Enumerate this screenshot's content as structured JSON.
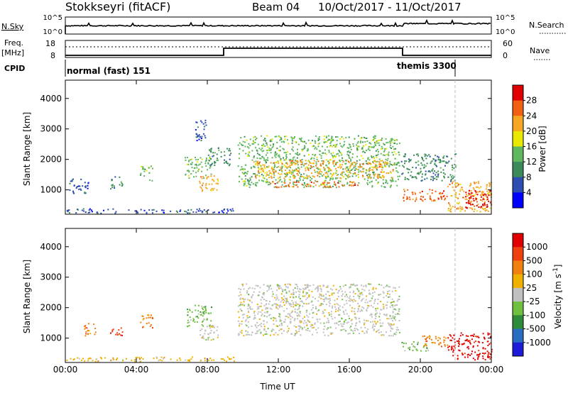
{
  "header": {
    "station": "Stokkseyri (fitACF)",
    "beam": "Beam 04",
    "date_range": "10/Oct/2017 - 11/Oct/2017"
  },
  "labels": {
    "nsky": "N.Sky",
    "nsearch": "N.Search",
    "freq_top": "Freq.",
    "freq_unit": "[MHz]",
    "nave": "Nave",
    "cpid": "CPID",
    "nsky_hi": "10^5",
    "nsky_lo": "10^0",
    "ns_hi": "10^5",
    "ns_lo": "10^0",
    "freq_hi": "18",
    "freq_lo": "8",
    "nave_hi": "60",
    "nave_lo": "0",
    "mode1": "normal (fast) 151",
    "mode2": "themis 3300",
    "ylabel": "Slant Range [km]",
    "xlabel": "Time UT"
  },
  "colors": {
    "power": [
      "#0000ff",
      "#2e4db0",
      "#3a8a5a",
      "#5fb85f",
      "#e8e800",
      "#f5a623",
      "#f06010",
      "#e00000"
    ],
    "velocity": [
      "#1c1cd8",
      "#2a6cc0",
      "#2e8b3a",
      "#70c040",
      "#c0c0c0",
      "#f0b000",
      "#f08010",
      "#f04010",
      "#e00000"
    ],
    "ground_scatter": "#c0c0c0"
  },
  "chart_data": [
    {
      "type": "heatmap",
      "title": "Power",
      "ylabel": "Slant Range [km]",
      "xlabel": "",
      "x_ticks": [
        "00:00",
        "04:00",
        "08:00",
        "12:00",
        "16:00",
        "20:00",
        "00:00"
      ],
      "y_ticks": [
        1000,
        2000,
        3000,
        4000
      ],
      "ylim": [
        200,
        4600
      ],
      "xlim_hours": [
        0,
        24
      ],
      "colorbar": {
        "label": "Power [dB]",
        "ticks": [
          4,
          8,
          12,
          16,
          20,
          24,
          28
        ]
      },
      "regions": [
        {
          "t0": 0.0,
          "t1": 9.5,
          "r0": 250,
          "r1": 400,
          "level": 1
        },
        {
          "t0": 0.2,
          "t1": 1.3,
          "r0": 900,
          "r1": 1400,
          "level": 1
        },
        {
          "t0": 2.5,
          "t1": 3.2,
          "r0": 1050,
          "r1": 1450,
          "level": 2
        },
        {
          "t0": 4.2,
          "t1": 4.9,
          "r0": 1300,
          "r1": 1800,
          "level": 3
        },
        {
          "t0": 6.7,
          "t1": 8.2,
          "r0": 1400,
          "r1": 2100,
          "level": 3
        },
        {
          "t0": 7.5,
          "t1": 8.6,
          "r0": 950,
          "r1": 1500,
          "level": 5
        },
        {
          "t0": 7.2,
          "t1": 7.9,
          "r0": 2600,
          "r1": 3300,
          "level": 1
        },
        {
          "t0": 8.0,
          "t1": 9.3,
          "r0": 1800,
          "r1": 2400,
          "level": 2
        },
        {
          "t0": 9.7,
          "t1": 18.8,
          "r0": 1100,
          "r1": 2800,
          "level": 3
        },
        {
          "t0": 10.5,
          "t1": 18.5,
          "r0": 1400,
          "r1": 2000,
          "level": 5
        },
        {
          "t0": 11.5,
          "t1": 16.5,
          "r0": 1100,
          "r1": 1300,
          "level": 6
        },
        {
          "t0": 18.9,
          "t1": 22.0,
          "r0": 1300,
          "r1": 2200,
          "level": 2
        },
        {
          "t0": 19.0,
          "t1": 21.5,
          "r0": 650,
          "r1": 1050,
          "level": 6
        },
        {
          "t0": 21.5,
          "t1": 24.0,
          "r0": 300,
          "r1": 1300,
          "level": 5
        },
        {
          "t0": 22.5,
          "t1": 24.0,
          "r0": 400,
          "r1": 1000,
          "level": 7
        }
      ]
    },
    {
      "type": "heatmap",
      "title": "Velocity",
      "ylabel": "Slant Range [km]",
      "xlabel": "Time UT",
      "x_ticks": [
        "00:00",
        "04:00",
        "08:00",
        "12:00",
        "16:00",
        "20:00",
        "00:00"
      ],
      "y_ticks": [
        1000,
        2000,
        3000,
        4000
      ],
      "ylim": [
        200,
        4600
      ],
      "xlim_hours": [
        0,
        24
      ],
      "colorbar": {
        "label": "Velocity [m s^-1]",
        "ticks": [
          "1000",
          "500",
          "100",
          "25",
          "-25",
          "-100",
          "-500",
          "-1000"
        ]
      },
      "regions": [
        {
          "t0": 0.0,
          "t1": 9.5,
          "r0": 250,
          "r1": 400,
          "level": 5
        },
        {
          "t0": 1.0,
          "t1": 1.8,
          "r0": 1100,
          "r1": 1500,
          "level": 6
        },
        {
          "t0": 2.5,
          "t1": 3.2,
          "r0": 1100,
          "r1": 1400,
          "level": 7
        },
        {
          "t0": 4.2,
          "t1": 4.9,
          "r0": 1300,
          "r1": 1800,
          "level": 6
        },
        {
          "t0": 6.7,
          "t1": 8.2,
          "r0": 1400,
          "r1": 2100,
          "level": 3
        },
        {
          "t0": 7.5,
          "t1": 8.6,
          "r0": 950,
          "r1": 1500,
          "level": 4
        },
        {
          "t0": 9.7,
          "t1": 18.8,
          "r0": 1100,
          "r1": 2800,
          "level": 4
        },
        {
          "t0": 18.9,
          "t1": 20.5,
          "r0": 600,
          "r1": 900,
          "level": 3
        },
        {
          "t0": 20.0,
          "t1": 21.5,
          "r0": 700,
          "r1": 1100,
          "level": 6
        },
        {
          "t0": 21.5,
          "t1": 24.0,
          "r0": 300,
          "r1": 1200,
          "level": 8
        }
      ]
    }
  ]
}
